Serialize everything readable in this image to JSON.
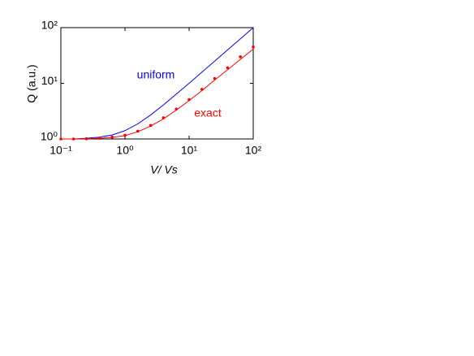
{
  "chart_data": {
    "type": "line",
    "xlabel": "V/ Vs",
    "ylabel": "Q (a.u.)",
    "log_x": true,
    "log_y": true,
    "grid": false,
    "xlim": [
      0.1,
      100
    ],
    "ylim": [
      1,
      100
    ],
    "xticks": [
      {
        "value": 0.1,
        "label": "10⁻¹"
      },
      {
        "value": 1,
        "label": "10⁰"
      },
      {
        "value": 10,
        "label": "10¹"
      },
      {
        "value": 100,
        "label": "10²"
      }
    ],
    "yticks": [
      {
        "value": 1,
        "label": "10⁰"
      },
      {
        "value": 10,
        "label": "10¹"
      },
      {
        "value": 100,
        "label": "10²"
      }
    ],
    "x": [
      0.1,
      0.158,
      0.251,
      0.398,
      0.631,
      1,
      1.585,
      2.512,
      3.981,
      6.31,
      10,
      15.85,
      25.12,
      39.81,
      63.1,
      100
    ],
    "series": [
      {
        "name": "uniform",
        "color": "#0000ff",
        "style": "line",
        "values": [
          1,
          1,
          1.03,
          1.08,
          1.18,
          1.41,
          1.87,
          2.7,
          4.1,
          6.4,
          10,
          15.9,
          25.1,
          39.8,
          63.1,
          100
        ]
      },
      {
        "name": "exact",
        "color": "#ff0000",
        "style": "line",
        "values": [
          1,
          1,
          1.01,
          1.03,
          1.07,
          1.15,
          1.35,
          1.7,
          2.3,
          3.3,
          4.9,
          7.4,
          11.5,
          17.5,
          27,
          41
        ]
      },
      {
        "color": "#ff0000",
        "style": "dots",
        "values": [
          1,
          1,
          1.01,
          1.03,
          1.08,
          1.17,
          1.38,
          1.75,
          2.4,
          3.45,
          5.1,
          7.8,
          12.2,
          19,
          30,
          45
        ]
      }
    ]
  }
}
